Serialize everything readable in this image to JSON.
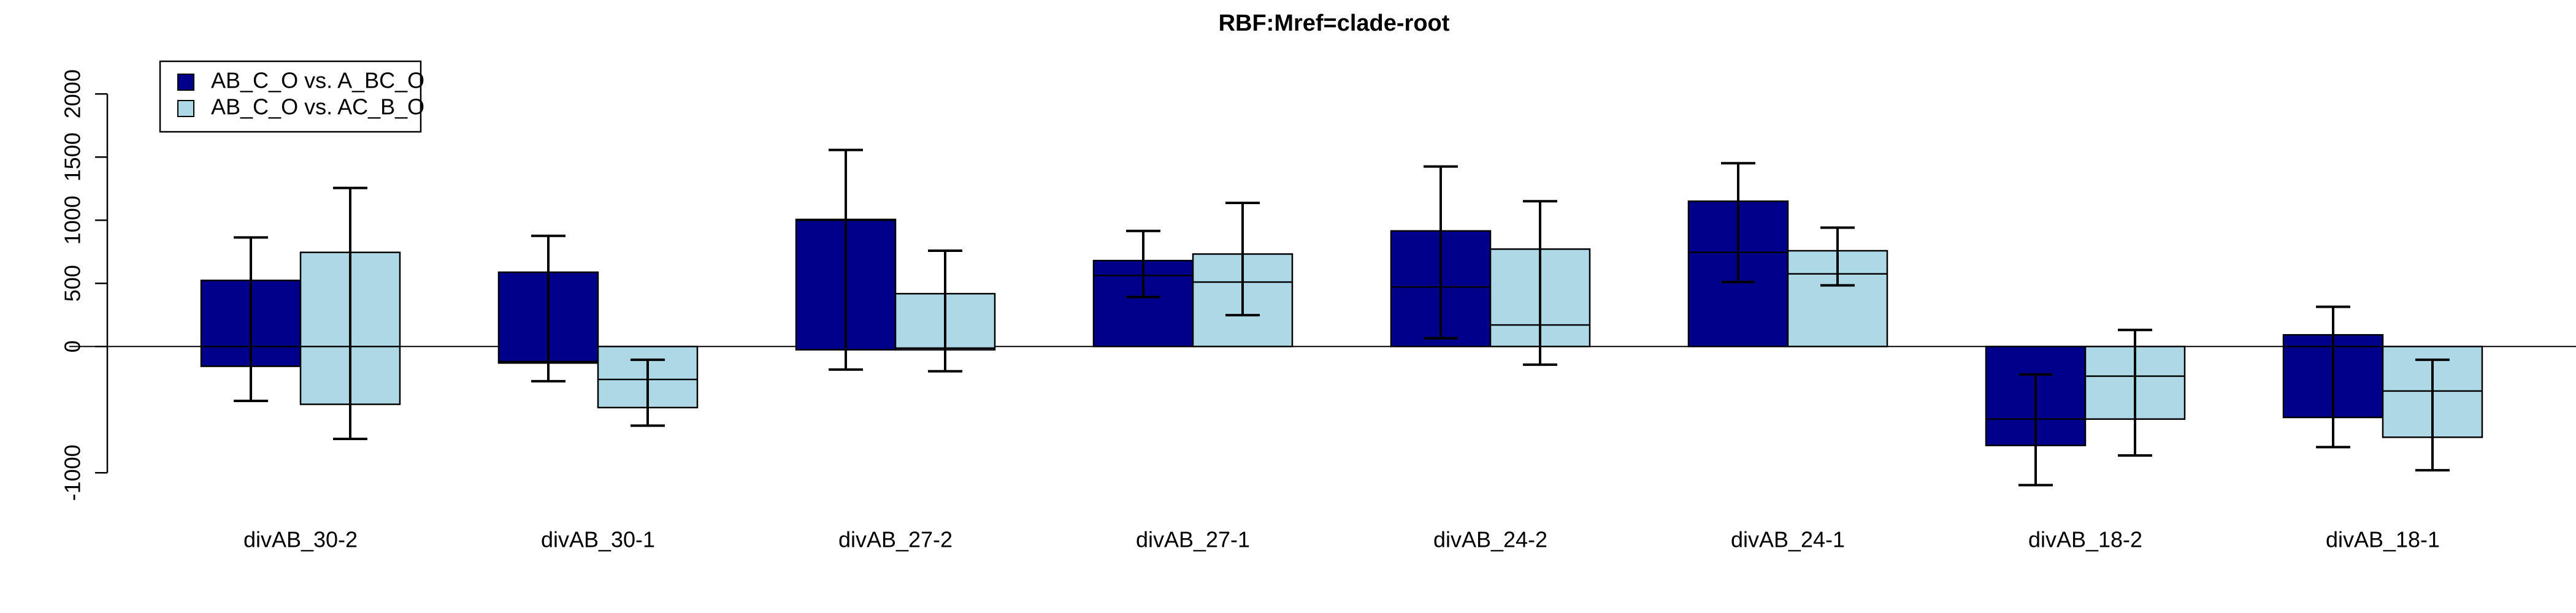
{
  "chart_data": {
    "type": "box",
    "title": "RBF:Mref=clade-root",
    "categories": [
      "divAB_30-2",
      "divAB_30-1",
      "divAB_27-2",
      "divAB_27-1",
      "divAB_24-2",
      "divAB_24-1",
      "divAB_18-2",
      "divAB_18-1"
    ],
    "series": [
      {
        "name": "AB_C_O vs. A_BC_O",
        "color": "#00008b",
        "box_high": [
          523,
          588,
          1006,
          680,
          915,
          1150,
          0,
          92
        ],
        "box_low": [
          -157,
          -131,
          -26,
          0,
          0,
          0,
          -784,
          -562
        ],
        "median": [
          0,
          -120,
          1000,
          562,
          471,
          745,
          -575,
          0
        ],
        "whisker_high": [
          863,
          876,
          1556,
          915,
          1425,
          1451,
          -222,
          314
        ],
        "whisker_low": [
          -431,
          -275,
          -183,
          392,
          65,
          510,
          -1098,
          -797
        ]
      },
      {
        "name": "AB_C_O vs. AC_B_O",
        "color": "#add8e6",
        "box_high": [
          745,
          0,
          418,
          732,
          771,
          758,
          0,
          0
        ],
        "box_low": [
          -458,
          -484,
          -26,
          0,
          0,
          0,
          -575,
          -719
        ],
        "median": [
          0,
          -261,
          -13,
          510,
          170,
          575,
          -235,
          -353
        ],
        "whisker_high": [
          1255,
          -105,
          758,
          1137,
          1150,
          941,
          131,
          -105
        ],
        "whisker_low": [
          -732,
          -627,
          -196,
          248,
          -144,
          484,
          -863,
          -980
        ]
      }
    ],
    "ylim": [
      -1300,
      2200
    ],
    "yticks": [
      -1000,
      0,
      500,
      1000,
      1500,
      2000
    ],
    "legend": "top-left"
  }
}
